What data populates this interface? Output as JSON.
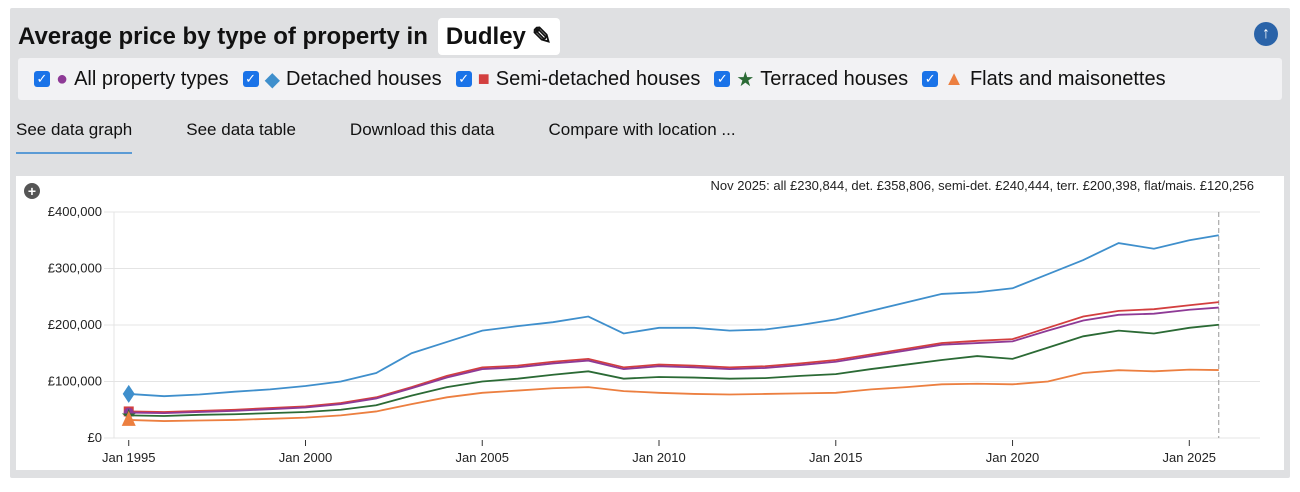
{
  "header": {
    "title": "Average price by type of property in",
    "location": "Dudley"
  },
  "legend": [
    {
      "label": "All property types",
      "color": "#8e3a96",
      "marker": "circle",
      "checked": true
    },
    {
      "label": "Detached houses",
      "color": "#3f8fcc",
      "marker": "diamond",
      "checked": true
    },
    {
      "label": "Semi-detached houses",
      "color": "#d33f3f",
      "marker": "square",
      "checked": true
    },
    {
      "label": "Terraced houses",
      "color": "#2b6a35",
      "marker": "star",
      "checked": true
    },
    {
      "label": "Flats and maisonettes",
      "color": "#ec7f40",
      "marker": "triangle",
      "checked": true
    }
  ],
  "tabs": [
    "See data graph",
    "See data table",
    "Download this data",
    "Compare with location ..."
  ],
  "active_tab": 0,
  "chart_data": {
    "type": "line",
    "readout": "Nov 2025: all £230,844, det. £358,806, semi-det. £240,444, terr. £200,398, flat/mais. £120,256",
    "x": [
      "1995-01",
      "1996-01",
      "1997-01",
      "1998-01",
      "1999-01",
      "2000-01",
      "2001-01",
      "2002-01",
      "2003-01",
      "2004-01",
      "2005-01",
      "2006-01",
      "2007-01",
      "2008-01",
      "2009-01",
      "2010-01",
      "2011-01",
      "2012-01",
      "2013-01",
      "2014-01",
      "2015-01",
      "2016-01",
      "2017-01",
      "2018-01",
      "2019-01",
      "2020-01",
      "2021-01",
      "2022-01",
      "2023-01",
      "2024-01",
      "2025-01",
      "2025-11"
    ],
    "xticks": [
      "Jan 1995",
      "Jan 2000",
      "Jan 2005",
      "Jan 2010",
      "Jan 2015",
      "Jan 2020",
      "Jan 2025"
    ],
    "xlim": [
      "1994-08",
      "2027-01"
    ],
    "yticks": [
      "£0",
      "£100,000",
      "£200,000",
      "£300,000",
      "£400,000"
    ],
    "ylim": [
      0,
      400000
    ],
    "grid": true,
    "series": [
      {
        "name": "Detached houses",
        "values": [
          78000,
          74000,
          77000,
          82000,
          86000,
          92000,
          100000,
          115000,
          150000,
          170000,
          190000,
          198000,
          205000,
          215000,
          185000,
          195000,
          195000,
          190000,
          192000,
          200000,
          210000,
          225000,
          240000,
          255000,
          258000,
          265000,
          290000,
          315000,
          345000,
          335000,
          350000,
          358806
        ]
      },
      {
        "name": "Semi-detached houses",
        "values": [
          47000,
          46000,
          48000,
          50000,
          53000,
          56000,
          62000,
          72000,
          90000,
          110000,
          125000,
          128000,
          135000,
          140000,
          125000,
          130000,
          128000,
          125000,
          127000,
          132000,
          138000,
          148000,
          158000,
          168000,
          172000,
          175000,
          195000,
          215000,
          225000,
          228000,
          235000,
          240444
        ]
      },
      {
        "name": "All property types",
        "values": [
          45000,
          44000,
          46000,
          48000,
          51000,
          54000,
          60000,
          70000,
          88000,
          107000,
          122000,
          125000,
          132000,
          137000,
          122000,
          127000,
          125000,
          122000,
          124000,
          129000,
          135000,
          145000,
          155000,
          165000,
          168000,
          171000,
          190000,
          208000,
          218000,
          220000,
          227000,
          230844
        ]
      },
      {
        "name": "Terraced houses",
        "values": [
          40000,
          39000,
          41000,
          42000,
          44000,
          46000,
          50000,
          58000,
          75000,
          90000,
          100000,
          105000,
          112000,
          118000,
          105000,
          108000,
          107000,
          105000,
          106000,
          110000,
          113000,
          122000,
          130000,
          138000,
          145000,
          140000,
          160000,
          180000,
          190000,
          185000,
          195000,
          200398
        ]
      },
      {
        "name": "Flats and maisonettes",
        "values": [
          32000,
          30000,
          31000,
          32000,
          34000,
          36000,
          40000,
          47000,
          60000,
          72000,
          80000,
          84000,
          88000,
          90000,
          83000,
          80000,
          78000,
          77000,
          78000,
          79000,
          80000,
          86000,
          90000,
          95000,
          96000,
          95000,
          100000,
          115000,
          120000,
          118000,
          121000,
          120256
        ]
      }
    ]
  }
}
